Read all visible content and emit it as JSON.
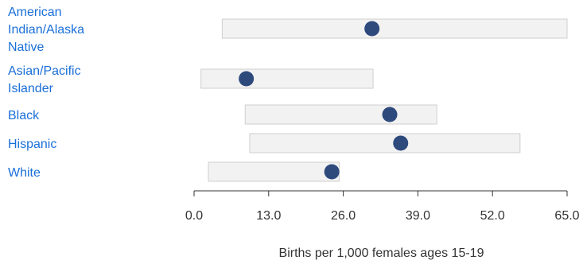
{
  "chart_data": {
    "type": "dot-range",
    "categories": [
      [
        "American",
        "Indian/Alaska",
        "Native"
      ],
      [
        "Asian/Pacific",
        "Islander"
      ],
      [
        "Black"
      ],
      [
        "Hispanic"
      ],
      [
        "White"
      ]
    ],
    "ranges": [
      [
        4.9,
        65.0
      ],
      [
        1.2,
        31.2
      ],
      [
        8.9,
        42.3
      ],
      [
        9.7,
        56.8
      ],
      [
        2.5,
        25.3
      ]
    ],
    "values": [
      31.0,
      9.1,
      34.1,
      36.0,
      24.0
    ],
    "x_ticks": [
      "0.0",
      "13.0",
      "26.0",
      "39.0",
      "52.0",
      "65.0"
    ],
    "xlim": [
      0,
      65
    ],
    "xlabel": "Births per 1,000 females ages 15-19",
    "colors": {
      "dot": "#2e4a7d",
      "bar_fill": "#f2f2f2",
      "bar_stroke": "#cfcfcf",
      "category_text": "#1a6fd8"
    }
  }
}
